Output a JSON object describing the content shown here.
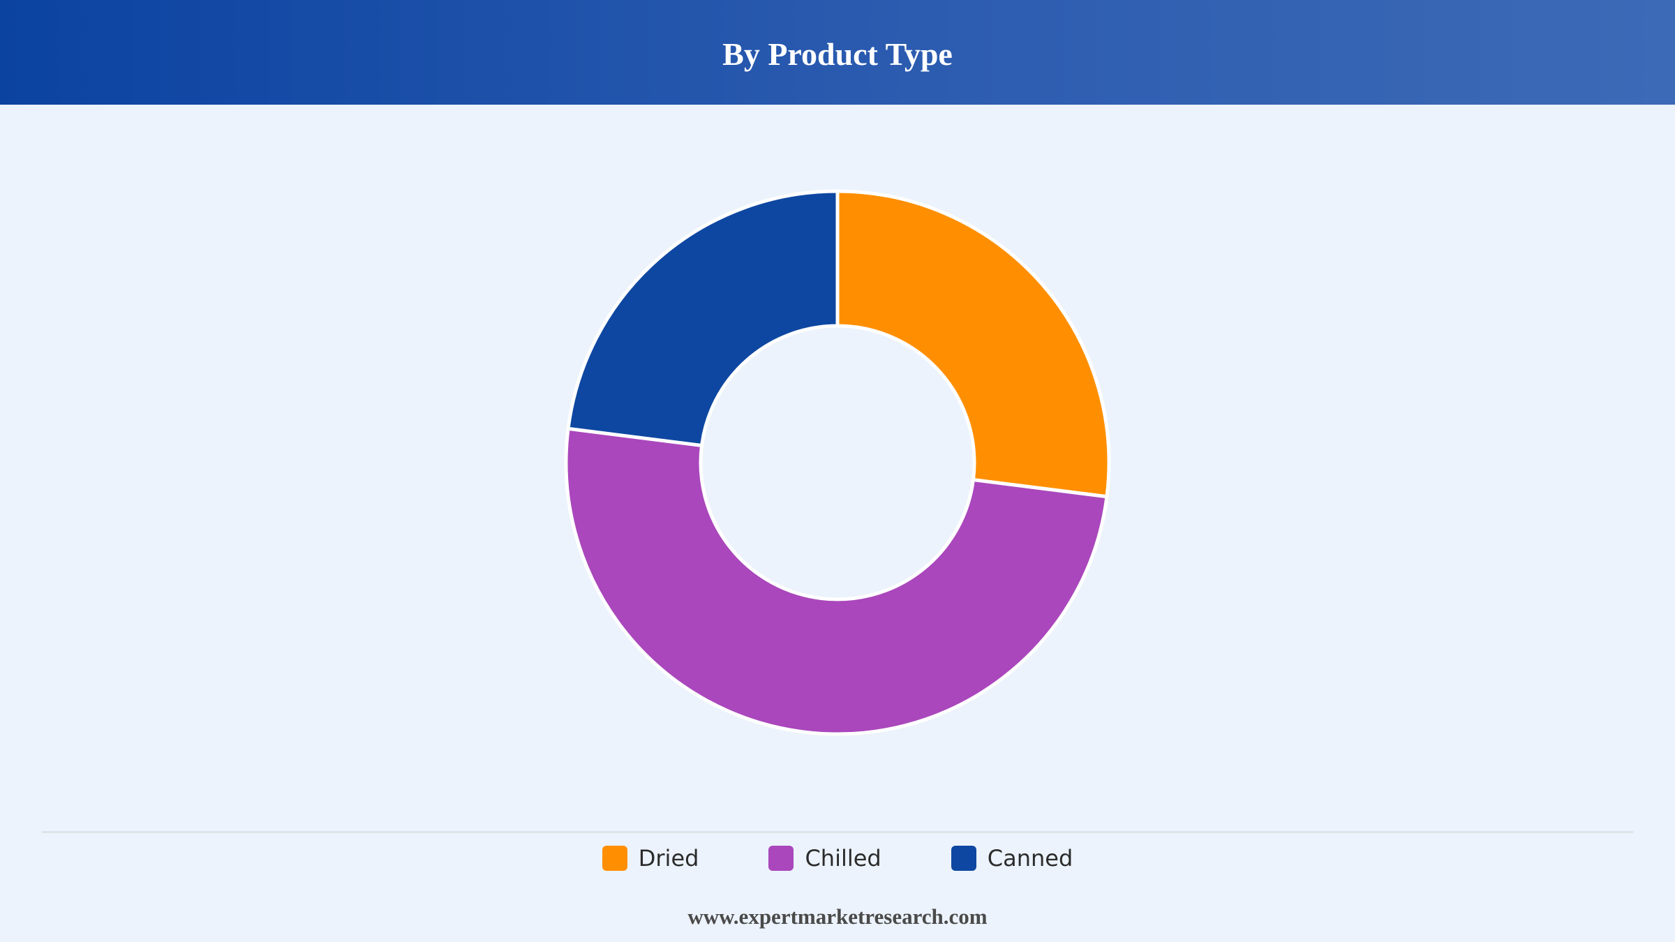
{
  "header": {
    "title": "By Product Type"
  },
  "chart_data": {
    "type": "pie",
    "variant": "donut",
    "title": "By Product Type",
    "categories": [
      "Dried",
      "Chilled",
      "Canned"
    ],
    "values": [
      27,
      50,
      23
    ],
    "colors": [
      "#ff8f00",
      "#aa47bc",
      "#0d47a1"
    ],
    "legend_position": "bottom",
    "grid": false
  },
  "legend": {
    "items": [
      {
        "label": "Dried",
        "color": "#ff8f00"
      },
      {
        "label": "Chilled",
        "color": "#aa47bc"
      },
      {
        "label": "Canned",
        "color": "#0d47a1"
      }
    ]
  },
  "footer": {
    "source": "www.expertmarketresearch.com"
  }
}
